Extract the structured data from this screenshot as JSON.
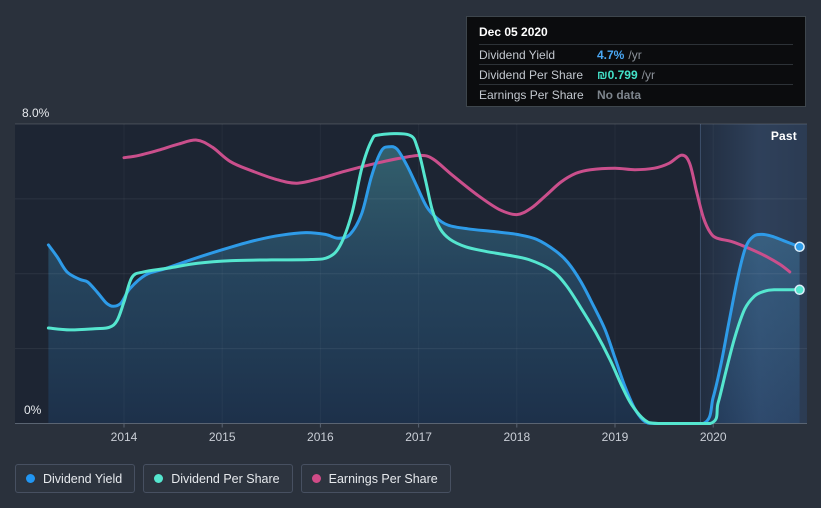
{
  "tooltip": {
    "date": "Dec 05 2020",
    "rows": [
      {
        "label": "Dividend Yield",
        "value": "4.7%",
        "suffix": "/yr",
        "value_color": "#4aa8f5"
      },
      {
        "label": "Dividend Per Share",
        "value": "₪0.799",
        "suffix": "/yr",
        "value_color": "#43e2c9"
      },
      {
        "label": "Earnings Per Share",
        "value": "No data",
        "suffix": "",
        "value_color": "#7e858d"
      }
    ]
  },
  "chart_data": {
    "type": "area",
    "title": "",
    "xlabel": "",
    "ylabel": "",
    "x_range": [
      2013.1,
      2020.95
    ],
    "ylim": [
      0,
      8
    ],
    "grid": true,
    "legend_position": "bottom",
    "y_tick_labels": {
      "top": "8.0%",
      "bottom": "0%"
    },
    "x_ticks": [
      2014,
      2015,
      2016,
      2017,
      2018,
      2019,
      2020
    ],
    "past_region": {
      "label": "Past",
      "start": 2019.87
    },
    "series": [
      {
        "name": "Dividend Yield",
        "color": "#2e9be8",
        "area_fill": true,
        "end_marker": true,
        "points": [
          [
            2013.23,
            4.77
          ],
          [
            2013.32,
            4.45
          ],
          [
            2013.42,
            4.05
          ],
          [
            2013.55,
            3.85
          ],
          [
            2013.63,
            3.78
          ],
          [
            2013.73,
            3.5
          ],
          [
            2013.82,
            3.22
          ],
          [
            2013.89,
            3.13
          ],
          [
            2013.97,
            3.22
          ],
          [
            2014.06,
            3.6
          ],
          [
            2014.22,
            3.97
          ],
          [
            2014.4,
            4.12
          ],
          [
            2014.62,
            4.32
          ],
          [
            2014.85,
            4.52
          ],
          [
            2015.1,
            4.72
          ],
          [
            2015.35,
            4.9
          ],
          [
            2015.6,
            5.03
          ],
          [
            2015.85,
            5.1
          ],
          [
            2016.05,
            5.05
          ],
          [
            2016.18,
            4.95
          ],
          [
            2016.3,
            5.05
          ],
          [
            2016.42,
            5.6
          ],
          [
            2016.52,
            6.6
          ],
          [
            2016.62,
            7.28
          ],
          [
            2016.7,
            7.39
          ],
          [
            2016.78,
            7.33
          ],
          [
            2016.88,
            6.9
          ],
          [
            2016.98,
            6.35
          ],
          [
            2017.08,
            5.8
          ],
          [
            2017.18,
            5.5
          ],
          [
            2017.3,
            5.3
          ],
          [
            2017.5,
            5.2
          ],
          [
            2017.75,
            5.13
          ],
          [
            2018.0,
            5.05
          ],
          [
            2018.2,
            4.92
          ],
          [
            2018.4,
            4.6
          ],
          [
            2018.52,
            4.3
          ],
          [
            2018.65,
            3.8
          ],
          [
            2018.78,
            3.15
          ],
          [
            2018.9,
            2.5
          ],
          [
            2019.0,
            1.75
          ],
          [
            2019.1,
            1.0
          ],
          [
            2019.2,
            0.4
          ],
          [
            2019.3,
            0.06
          ],
          [
            2019.42,
            0
          ],
          [
            2019.9,
            0
          ],
          [
            2020.0,
            0.7
          ],
          [
            2020.08,
            1.6
          ],
          [
            2020.16,
            2.7
          ],
          [
            2020.25,
            3.9
          ],
          [
            2020.33,
            4.7
          ],
          [
            2020.41,
            5.0
          ],
          [
            2020.5,
            5.05
          ],
          [
            2020.6,
            5.0
          ],
          [
            2020.72,
            4.88
          ],
          [
            2020.88,
            4.72
          ]
        ]
      },
      {
        "name": "Dividend Per Share",
        "color": "#55e6cf",
        "area_fill": false,
        "end_marker": true,
        "points": [
          [
            2013.23,
            2.55
          ],
          [
            2013.45,
            2.5
          ],
          [
            2013.7,
            2.53
          ],
          [
            2013.85,
            2.57
          ],
          [
            2013.93,
            2.75
          ],
          [
            2014.0,
            3.25
          ],
          [
            2014.08,
            3.9
          ],
          [
            2014.2,
            4.05
          ],
          [
            2014.45,
            4.15
          ],
          [
            2014.75,
            4.28
          ],
          [
            2015.1,
            4.35
          ],
          [
            2015.5,
            4.37
          ],
          [
            2015.9,
            4.38
          ],
          [
            2016.08,
            4.44
          ],
          [
            2016.2,
            4.75
          ],
          [
            2016.32,
            5.6
          ],
          [
            2016.42,
            6.8
          ],
          [
            2016.52,
            7.55
          ],
          [
            2016.6,
            7.71
          ],
          [
            2016.9,
            7.71
          ],
          [
            2016.99,
            7.35
          ],
          [
            2017.07,
            6.5
          ],
          [
            2017.14,
            5.7
          ],
          [
            2017.22,
            5.2
          ],
          [
            2017.32,
            4.92
          ],
          [
            2017.48,
            4.72
          ],
          [
            2017.68,
            4.6
          ],
          [
            2017.9,
            4.5
          ],
          [
            2018.12,
            4.38
          ],
          [
            2018.35,
            4.1
          ],
          [
            2018.5,
            3.7
          ],
          [
            2018.65,
            3.1
          ],
          [
            2018.8,
            2.45
          ],
          [
            2018.95,
            1.7
          ],
          [
            2019.07,
            1.0
          ],
          [
            2019.17,
            0.5
          ],
          [
            2019.3,
            0.1
          ],
          [
            2019.44,
            0
          ],
          [
            2019.97,
            0
          ],
          [
            2020.05,
            0.55
          ],
          [
            2020.13,
            1.4
          ],
          [
            2020.22,
            2.3
          ],
          [
            2020.32,
            3.05
          ],
          [
            2020.42,
            3.4
          ],
          [
            2020.52,
            3.53
          ],
          [
            2020.62,
            3.57
          ],
          [
            2020.88,
            3.57
          ]
        ]
      },
      {
        "name": "Earnings Per Share",
        "color": "#ca4f8c",
        "area_fill": false,
        "end_marker": false,
        "points": [
          [
            2014.0,
            7.1
          ],
          [
            2014.15,
            7.16
          ],
          [
            2014.35,
            7.3
          ],
          [
            2014.55,
            7.46
          ],
          [
            2014.74,
            7.57
          ],
          [
            2014.9,
            7.38
          ],
          [
            2015.08,
            7.0
          ],
          [
            2015.3,
            6.75
          ],
          [
            2015.55,
            6.52
          ],
          [
            2015.76,
            6.42
          ],
          [
            2016.0,
            6.55
          ],
          [
            2016.25,
            6.74
          ],
          [
            2016.55,
            6.94
          ],
          [
            2016.8,
            7.08
          ],
          [
            2017.02,
            7.16
          ],
          [
            2017.15,
            7.06
          ],
          [
            2017.35,
            6.62
          ],
          [
            2017.6,
            6.1
          ],
          [
            2017.82,
            5.72
          ],
          [
            2018.0,
            5.58
          ],
          [
            2018.15,
            5.76
          ],
          [
            2018.3,
            6.1
          ],
          [
            2018.45,
            6.45
          ],
          [
            2018.6,
            6.68
          ],
          [
            2018.75,
            6.78
          ],
          [
            2019.0,
            6.82
          ],
          [
            2019.2,
            6.78
          ],
          [
            2019.4,
            6.82
          ],
          [
            2019.55,
            6.95
          ],
          [
            2019.68,
            7.17
          ],
          [
            2019.76,
            6.95
          ],
          [
            2019.83,
            6.2
          ],
          [
            2019.9,
            5.5
          ],
          [
            2019.97,
            5.1
          ],
          [
            2020.04,
            4.95
          ],
          [
            2020.2,
            4.85
          ],
          [
            2020.38,
            4.66
          ],
          [
            2020.55,
            4.45
          ],
          [
            2020.68,
            4.25
          ],
          [
            2020.78,
            4.05
          ]
        ]
      }
    ]
  },
  "legend": {
    "items": [
      {
        "label": "Dividend Yield",
        "color": "#2196f3"
      },
      {
        "label": "Dividend Per Share",
        "color": "#55e6cf"
      },
      {
        "label": "Earnings Per Share",
        "color": "#d04b87"
      }
    ]
  }
}
